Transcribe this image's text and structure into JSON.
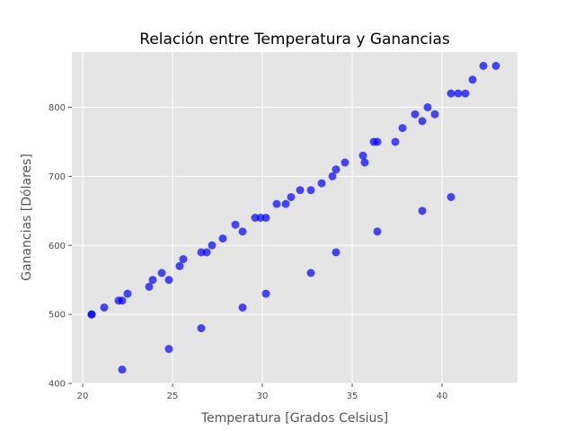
{
  "chart_data": {
    "type": "scatter",
    "title": "Relación entre Temperatura y Ganancias",
    "xlabel": "Temperatura [Grados Celsius]",
    "ylabel": "Ganancias [Dólares]",
    "xlim": [
      19.4,
      44.2
    ],
    "ylim": [
      400,
      880
    ],
    "xticks": [
      20,
      25,
      30,
      35,
      40
    ],
    "yticks": [
      400,
      500,
      600,
      700,
      800
    ],
    "grid": true,
    "point_color": "#0000ff",
    "background_color": "#e5e5e5",
    "series": [
      {
        "x": [
          20.5,
          20.5,
          21.2,
          22.0,
          22.2,
          22.5,
          23.7,
          23.9,
          24.4,
          24.8,
          25.4,
          25.6,
          26.6,
          26.9,
          27.2,
          27.8,
          28.5,
          28.9,
          29.6,
          29.9,
          30.2,
          30.8,
          31.3,
          31.6,
          32.1,
          32.7,
          33.3,
          33.9,
          34.1,
          34.6,
          35.6,
          35.7,
          36.2,
          36.4,
          37.4,
          37.8,
          38.5,
          38.9,
          39.2,
          39.6,
          40.5,
          40.9,
          41.3,
          41.7,
          42.3,
          43.0,
          22.2,
          24.8,
          26.6,
          28.9,
          30.2,
          32.7,
          34.1,
          36.4,
          38.9,
          40.5
        ],
        "y": [
          500,
          500,
          510,
          520,
          520,
          530,
          540,
          550,
          560,
          550,
          570,
          580,
          590,
          590,
          600,
          610,
          630,
          620,
          640,
          640,
          640,
          660,
          660,
          670,
          680,
          680,
          690,
          700,
          710,
          720,
          730,
          720,
          750,
          750,
          750,
          770,
          790,
          780,
          800,
          790,
          820,
          820,
          820,
          840,
          860,
          860,
          420,
          450,
          480,
          510,
          530,
          560,
          590,
          620,
          650,
          670
        ]
      }
    ]
  }
}
